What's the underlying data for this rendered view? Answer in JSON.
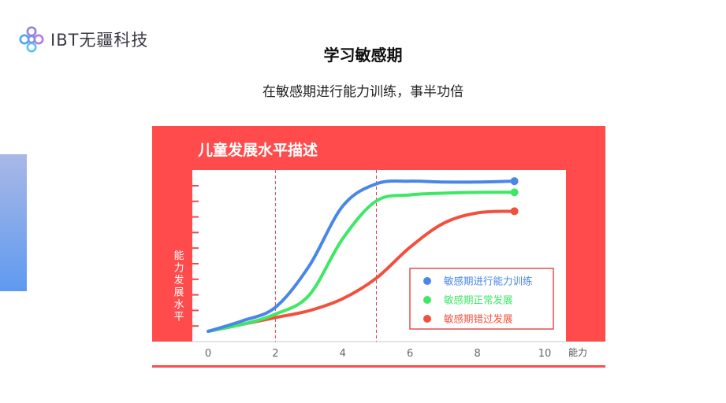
{
  "header": {
    "logo_text": "IBT无疆科技",
    "title": "学习敏感期",
    "subtitle": "在敏感期进行能力训练，事半功倍"
  },
  "colors": {
    "panel": "#ff4b4b",
    "blue": "#4a86e8",
    "green": "#3ee865",
    "red": "#f2503c"
  },
  "chart_data": {
    "type": "line",
    "title": "儿童发展水平描述",
    "xlabel": "能力",
    "ylabel": "能力发展水平",
    "xlim": [
      0,
      10
    ],
    "ylim": [
      0,
      10
    ],
    "x_ticks": [
      "0",
      "2",
      "4",
      "6",
      "8",
      "10"
    ],
    "reference_lines_x": [
      2,
      5
    ],
    "grid": false,
    "legend_position": "bottom-right",
    "series": [
      {
        "name": "敏感期进行能力训练",
        "color": "#4a86e8",
        "x": [
          0,
          1,
          2,
          3,
          4,
          5,
          6,
          7,
          8,
          9.1
        ],
        "y": [
          0.6,
          1.2,
          2.0,
          4.4,
          7.9,
          9.2,
          9.35,
          9.3,
          9.3,
          9.35
        ]
      },
      {
        "name": "敏感期正常发展",
        "color": "#3ee865",
        "x": [
          0,
          1,
          2,
          3,
          4,
          5,
          6,
          7,
          8,
          9.1
        ],
        "y": [
          0.6,
          1.0,
          1.6,
          2.7,
          6.0,
          8.2,
          8.55,
          8.65,
          8.7,
          8.7
        ]
      },
      {
        "name": "敏感期错过发展",
        "color": "#f2503c",
        "x": [
          0,
          1,
          2,
          3,
          4,
          5,
          6,
          7,
          8,
          9.1
        ],
        "y": [
          0.6,
          1.0,
          1.4,
          1.8,
          2.5,
          3.7,
          5.5,
          6.9,
          7.5,
          7.6
        ]
      }
    ]
  }
}
